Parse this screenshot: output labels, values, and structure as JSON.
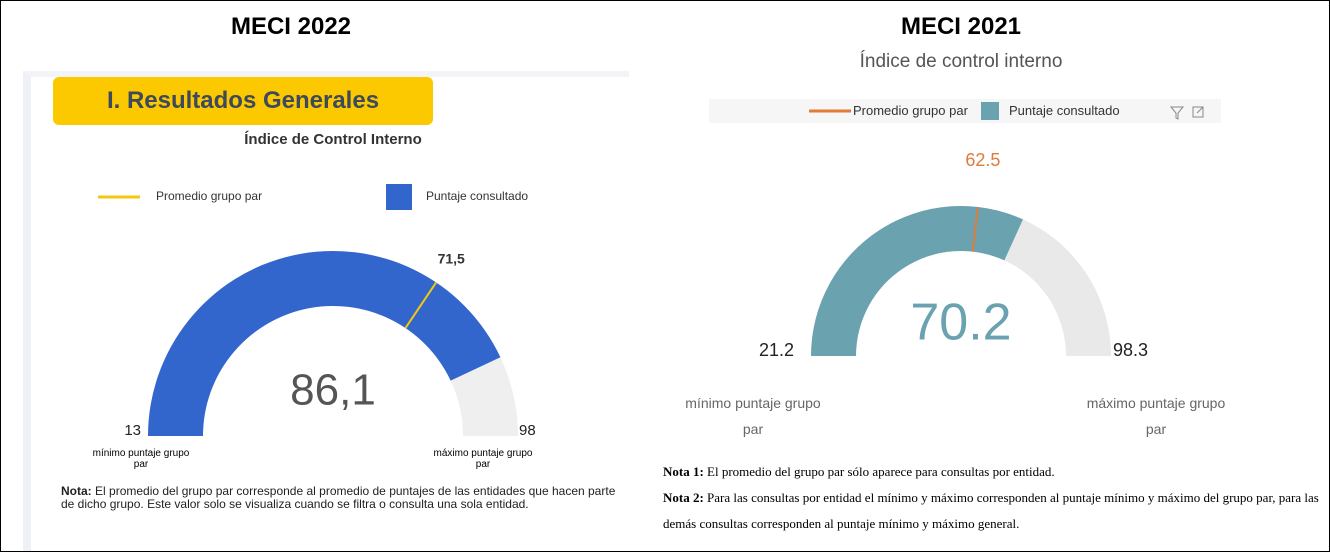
{
  "chart_data": [
    {
      "type": "gauge",
      "heading": "MECI 2022",
      "section": "I. Resultados Generales",
      "title": "Índice de Control Interno",
      "series": [
        {
          "name": "Promedio grupo par",
          "color": "#f2c811",
          "values": [
            71.5
          ],
          "value_labels": [
            "71,5"
          ]
        },
        {
          "name": "Puntaje consultado",
          "color": "#3366cc",
          "values": [
            86.1
          ],
          "value_labels": [
            "86,1"
          ]
        }
      ],
      "min": 13,
      "max": 98,
      "track_color": "#efefef",
      "min_label": "mínimo puntaje grupo par",
      "max_label": "máximo puntaje grupo par",
      "notes": [
        {
          "label": "Nota:",
          "text": "El promedio del grupo par corresponde al promedio de puntajes de las entidades que hacen parte de dicho grupo.  Este valor solo se visualiza cuando se filtra o consulta una sola entidad."
        }
      ]
    },
    {
      "type": "gauge",
      "heading": "MECI 2021",
      "title": "Índice de control interno",
      "series": [
        {
          "name": "Promedio grupo par",
          "color": "#e07b39",
          "values": [
            62.5
          ]
        },
        {
          "name": "Puntaje consultado",
          "color": "#6aa2b0",
          "values": [
            70.2
          ]
        }
      ],
      "min": 21.2,
      "max": 98.3,
      "track_color": "#e9e9e9",
      "min_label": "mínimo puntaje grupo par",
      "max_label": "máximo puntaje grupo par",
      "notes": [
        {
          "label": "Nota 1:",
          "text": "El promedio del grupo par sólo aparece para consultas por entidad."
        },
        {
          "label": "Nota 2:",
          "text": "Para las consultas por entidad el mínimo y máximo corresponden al puntaje mínimo y máximo del grupo par, para las demás consultas corresponden al puntaje mínimo y máximo general."
        }
      ]
    }
  ]
}
